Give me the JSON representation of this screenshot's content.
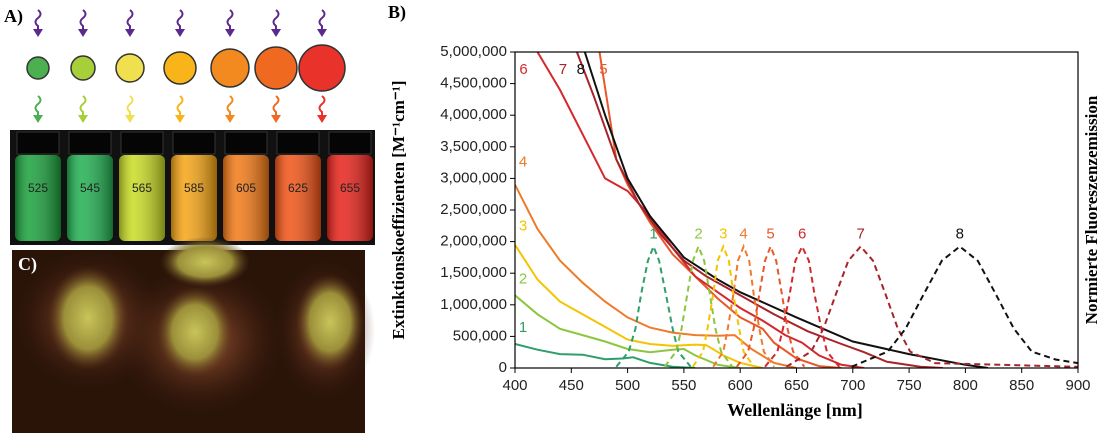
{
  "panel_a": {
    "label": "A)",
    "vials": [
      "525",
      "545",
      "565",
      "585",
      "605",
      "625",
      "655"
    ]
  },
  "panel_c": {
    "label": "C)"
  },
  "chart_data": {
    "type": "line",
    "panel_label": "B)",
    "x_label": "Wellenlänge [nm]",
    "y_label": "Extinktionskoeffizienten [M⁻¹cm⁻¹]",
    "y2_label": "Normierte Fluoreszenzemission",
    "xlim": [
      400,
      900
    ],
    "xticks": [
      400,
      450,
      500,
      550,
      600,
      650,
      700,
      750,
      800,
      850,
      900
    ],
    "ylim": [
      0,
      5000000
    ],
    "yticks": [
      0,
      {
        "value": 500000,
        "label": "500,000"
      },
      {
        "value": 1000000,
        "label": "1,000,000"
      },
      {
        "value": 1500000,
        "label": "1,500,000"
      },
      {
        "value": 2000000,
        "label": "2,000,000"
      },
      {
        "value": 2500000,
        "label": "2,500,000"
      },
      {
        "value": 3000000,
        "label": "3,000,000"
      },
      {
        "value": 3500000,
        "label": "3,500,000"
      },
      {
        "value": 4000000,
        "label": "4,000,000"
      },
      {
        "value": 4500000,
        "label": "4,500,000"
      },
      {
        "value": 5000000,
        "label": "5,000,000"
      }
    ],
    "y2lim": [
      0,
      2.6
    ],
    "series": [
      {
        "name": "1",
        "color": "#2e9e6a",
        "linestyle": "solid",
        "x": [
          400,
          420,
          440,
          460,
          480,
          495,
          505,
          520,
          540,
          560
        ],
        "values": [
          380000,
          290000,
          220000,
          210000,
          140000,
          150000,
          170000,
          80000,
          20000,
          0
        ]
      },
      {
        "name": "2",
        "color": "#8cc63f",
        "linestyle": "solid",
        "x": [
          400,
          420,
          440,
          460,
          480,
          500,
          520,
          540,
          550,
          560,
          580,
          600
        ],
        "values": [
          1150000,
          850000,
          620000,
          520000,
          420000,
          300000,
          250000,
          290000,
          300000,
          200000,
          50000,
          0
        ]
      },
      {
        "name": "3",
        "color": "#f5c400",
        "linestyle": "solid",
        "x": [
          400,
          420,
          440,
          460,
          480,
          500,
          520,
          540,
          560,
          570,
          585,
          600,
          620
        ],
        "values": [
          1950000,
          1400000,
          1050000,
          850000,
          650000,
          450000,
          380000,
          350000,
          370000,
          360000,
          200000,
          80000,
          0
        ]
      },
      {
        "name": "4",
        "color": "#ee7b2a",
        "linestyle": "solid",
        "x": [
          400,
          420,
          440,
          460,
          480,
          500,
          520,
          540,
          560,
          580,
          595,
          610,
          630,
          650
        ],
        "values": [
          2900000,
          2200000,
          1700000,
          1350000,
          1050000,
          800000,
          640000,
          560000,
          520000,
          510000,
          520000,
          300000,
          80000,
          0
        ]
      },
      {
        "name": "5",
        "color": "#e8572a",
        "linestyle": "solid",
        "x": [
          475,
          490,
          500,
          520,
          540,
          560,
          580,
          600,
          620,
          630,
          650,
          670,
          690
        ],
        "values": [
          5000000,
          3300000,
          2900000,
          2300000,
          1800000,
          1450000,
          1100000,
          800000,
          620000,
          400000,
          150000,
          30000,
          0
        ]
      },
      {
        "name": "6",
        "color": "#d4282c",
        "linestyle": "solid",
        "x": [
          420,
          440,
          460,
          480,
          500,
          520,
          540,
          560,
          580,
          600,
          620,
          640,
          655,
          670,
          690,
          710
        ],
        "values": [
          5000000,
          4400000,
          3700000,
          3000000,
          2800000,
          2400000,
          1900000,
          1450000,
          1200000,
          950000,
          750000,
          520000,
          400000,
          200000,
          50000,
          0
        ]
      },
      {
        "name": "7",
        "color": "#a8242a",
        "linestyle": "solid",
        "x": [
          455,
          470,
          490,
          510,
          530,
          550,
          570,
          600,
          630,
          660,
          690,
          710,
          730,
          760,
          780
        ],
        "values": [
          5000000,
          4300000,
          3300000,
          2600000,
          2100000,
          1700000,
          1450000,
          1150000,
          850000,
          580000,
          380000,
          250000,
          100000,
          20000,
          0
        ]
      },
      {
        "name": "8",
        "color": "#111111",
        "linestyle": "solid",
        "x": [
          462,
          480,
          500,
          520,
          550,
          580,
          600,
          650,
          700,
          750,
          800,
          820
        ],
        "values": [
          5000000,
          4000000,
          3000000,
          2400000,
          1750000,
          1400000,
          1200000,
          800000,
          420000,
          220000,
          50000,
          0
        ]
      },
      {
        "name": "1",
        "color": "#2e9e6a",
        "linestyle": "dashed",
        "axis": "y2",
        "x": [
          490,
          501,
          507,
          512,
          518,
          523,
          528,
          534,
          540,
          545,
          556
        ],
        "values": [
          0.011,
          0.135,
          0.325,
          0.607,
          0.882,
          1,
          0.882,
          0.607,
          0.325,
          0.135,
          0.011
        ]
      },
      {
        "name": "2",
        "color": "#8cc63f",
        "linestyle": "dashed",
        "axis": "y2",
        "x": [
          533,
          543,
          548,
          553,
          558,
          563,
          568,
          573,
          578,
          583,
          593
        ],
        "values": [
          0.011,
          0.135,
          0.325,
          0.607,
          0.882,
          1,
          0.882,
          0.607,
          0.325,
          0.135,
          0.011
        ]
      },
      {
        "name": "3",
        "color": "#f5c400",
        "linestyle": "dashed",
        "axis": "y2",
        "x": [
          558,
          567,
          571,
          576,
          580,
          585,
          590,
          594,
          599,
          603,
          612
        ],
        "values": [
          0.011,
          0.135,
          0.325,
          0.607,
          0.882,
          1,
          0.882,
          0.607,
          0.325,
          0.135,
          0.011
        ]
      },
      {
        "name": "4",
        "color": "#ee7b2a",
        "linestyle": "dashed",
        "axis": "y2",
        "x": [
          576,
          585,
          589,
          594,
          598,
          603,
          608,
          612,
          617,
          621,
          630
        ],
        "values": [
          0.011,
          0.135,
          0.325,
          0.607,
          0.882,
          1,
          0.882,
          0.607,
          0.325,
          0.135,
          0.011
        ]
      },
      {
        "name": "5",
        "color": "#e8572a",
        "linestyle": "dashed",
        "axis": "y2",
        "x": [
          597,
          607,
          612,
          617,
          622,
          627,
          632,
          637,
          642,
          647,
          657
        ],
        "values": [
          0.011,
          0.135,
          0.325,
          0.607,
          0.882,
          1,
          0.882,
          0.607,
          0.325,
          0.135,
          0.011
        ]
      },
      {
        "name": "6",
        "color": "#d4282c",
        "linestyle": "dashed",
        "axis": "y2",
        "x": [
          622,
          633,
          638,
          644,
          649,
          655,
          661,
          666,
          672,
          677,
          688
        ],
        "values": [
          0.011,
          0.135,
          0.325,
          0.607,
          0.882,
          1,
          0.882,
          0.607,
          0.325,
          0.135,
          0.011
        ]
      },
      {
        "name": "7",
        "color": "#a8242a",
        "linestyle": "dashed",
        "axis": "y2",
        "x": [
          641,
          663,
          674,
          685,
          696,
          707,
          718,
          729,
          740,
          751,
          773,
          900
        ],
        "values": [
          0.011,
          0.135,
          0.325,
          0.607,
          0.882,
          1,
          0.882,
          0.607,
          0.325,
          0.135,
          0.04,
          0.01
        ]
      },
      {
        "name": "8",
        "color": "#111111",
        "linestyle": "dashed",
        "axis": "y2",
        "x": [
          699,
          731,
          747,
          763,
          779,
          795,
          811,
          827,
          843,
          859,
          880,
          900
        ],
        "values": [
          0.011,
          0.135,
          0.325,
          0.607,
          0.882,
          1,
          0.882,
          0.607,
          0.325,
          0.135,
          0.07,
          0.04
        ]
      }
    ]
  }
}
